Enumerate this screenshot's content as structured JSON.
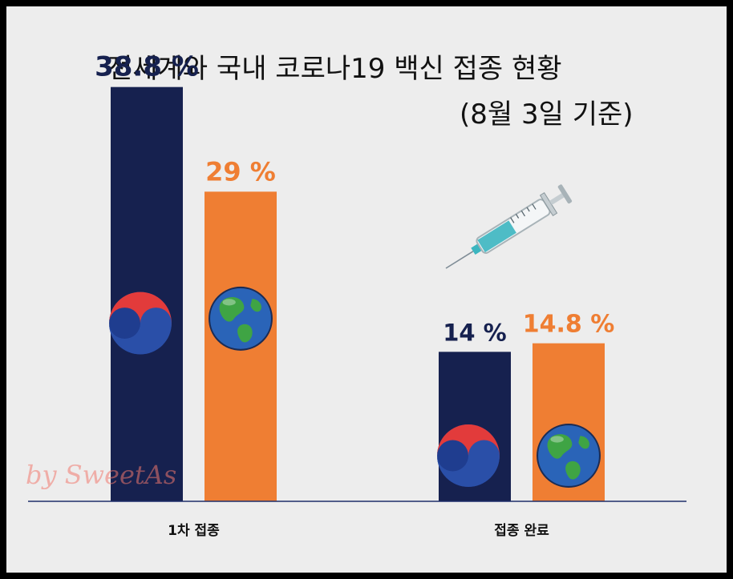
{
  "title": "전세계와 국내 코로나19 백신 접종 현황",
  "subtitle": "(8월 3일 기준)",
  "watermark": "by SweetAs",
  "colors": {
    "korea": "#16214f",
    "world": "#ef7e33",
    "axis": "#1f2e6b"
  },
  "chart_data": {
    "type": "bar",
    "title": "전세계와 국내 코로나19 백신 접종 현황",
    "subtitle": "(8월 3일 기준)",
    "categories": [
      "1차 접종",
      "접종 완료"
    ],
    "series": [
      {
        "name": "",
        "icon": "korea-taegeuk-icon",
        "values": [
          38.8,
          14
        ],
        "labels": [
          "38.8 %",
          "14 %"
        ]
      },
      {
        "name": "",
        "icon": "earth-globe-icon",
        "values": [
          29,
          14.8
        ],
        "labels": [
          "29 %",
          "14.8 %"
        ]
      }
    ],
    "ylim": [
      0,
      45
    ],
    "grid": false,
    "legend": "none",
    "xlabel": "",
    "ylabel": ""
  }
}
